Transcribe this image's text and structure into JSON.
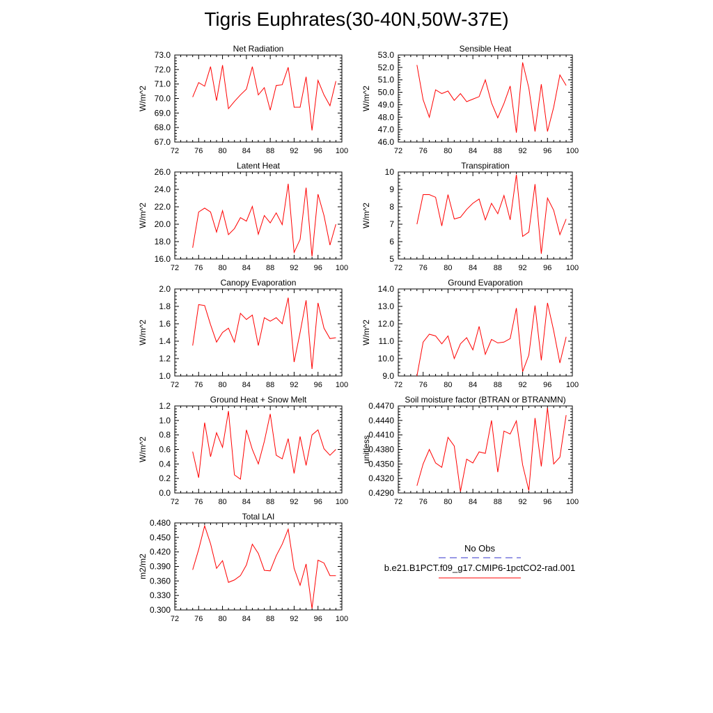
{
  "title": "Tigris Euphrates(30-40N,50W-37E)",
  "legend": {
    "obs_label": "No Obs",
    "obs_color": "#3333cc",
    "model_label": "b.e21.B1PCT.f09_g17.CMIP6-1pctCO2-rad.001",
    "model_color": "#ff0000"
  },
  "chart_data": [
    {
      "type": "line",
      "title": "Net Radiation",
      "ylabel": "W/m^2",
      "xlim": [
        72,
        100
      ],
      "ylim": [
        67.0,
        73.0
      ],
      "x_ticks": [
        "72",
        "76",
        "80",
        "84",
        "88",
        "92",
        "96",
        "100"
      ],
      "y_ticks": [
        "67.0",
        "68.0",
        "69.0",
        "70.0",
        "71.0",
        "72.0",
        "73.0"
      ],
      "x": [
        75,
        76,
        77,
        78,
        79,
        80,
        81,
        82,
        83,
        84,
        85,
        86,
        87,
        88,
        89,
        90,
        91,
        92,
        93,
        94,
        95,
        96,
        97,
        98,
        99
      ],
      "series": [
        {
          "values": [
            70.1,
            71.1,
            70.85,
            72.2,
            69.85,
            72.3,
            69.3,
            69.8,
            70.25,
            70.65,
            72.2,
            70.25,
            70.75,
            69.2,
            70.9,
            70.95,
            72.15,
            69.4,
            69.4,
            71.5,
            67.8,
            71.25,
            70.25,
            69.5,
            71.2
          ]
        }
      ]
    },
    {
      "type": "line",
      "title": "Sensible Heat",
      "ylabel": "W/m^2",
      "xlim": [
        72,
        100
      ],
      "ylim": [
        46.0,
        53.0
      ],
      "x_ticks": [
        "72",
        "76",
        "80",
        "84",
        "88",
        "92",
        "96",
        "100"
      ],
      "y_ticks": [
        "46.0",
        "47.0",
        "48.0",
        "49.0",
        "50.0",
        "51.0",
        "52.0",
        "53.0"
      ],
      "x": [
        75,
        76,
        77,
        78,
        79,
        80,
        81,
        82,
        83,
        84,
        85,
        86,
        87,
        88,
        89,
        90,
        91,
        92,
        93,
        94,
        95,
        96,
        97,
        98,
        99
      ],
      "series": [
        {
          "values": [
            52.2,
            49.4,
            48.0,
            50.2,
            49.9,
            50.1,
            49.35,
            49.9,
            49.25,
            49.45,
            49.65,
            51.0,
            49.15,
            47.95,
            49.1,
            50.5,
            46.75,
            52.4,
            50.35,
            46.85,
            50.65,
            46.85,
            48.8,
            51.4,
            50.55
          ]
        }
      ]
    },
    {
      "type": "line",
      "title": "Latent Heat",
      "ylabel": "W/m^2",
      "xlim": [
        72,
        100
      ],
      "ylim": [
        16.0,
        26.0
      ],
      "x_ticks": [
        "72",
        "76",
        "80",
        "84",
        "88",
        "92",
        "96",
        "100"
      ],
      "y_ticks": [
        "16.0",
        "18.0",
        "20.0",
        "22.0",
        "24.0",
        "26.0"
      ],
      "x": [
        75,
        76,
        77,
        78,
        79,
        80,
        81,
        82,
        83,
        84,
        85,
        86,
        87,
        88,
        89,
        90,
        91,
        92,
        93,
        94,
        95,
        96,
        97,
        98,
        99
      ],
      "series": [
        {
          "values": [
            17.3,
            21.4,
            21.85,
            21.4,
            19.1,
            21.55,
            18.8,
            19.5,
            20.75,
            20.35,
            22.05,
            18.85,
            21.0,
            20.15,
            21.3,
            19.95,
            24.65,
            16.75,
            18.25,
            24.2,
            16.3,
            23.45,
            21.0,
            17.6,
            20.0
          ]
        }
      ]
    },
    {
      "type": "line",
      "title": "Transpiration",
      "ylabel": "W/m^2",
      "xlim": [
        72,
        100
      ],
      "ylim": [
        5,
        10
      ],
      "x_ticks": [
        "72",
        "76",
        "80",
        "84",
        "88",
        "92",
        "96",
        "100"
      ],
      "y_ticks": [
        "5",
        "6",
        "7",
        "8",
        "9",
        "10"
      ],
      "x": [
        75,
        76,
        77,
        78,
        79,
        80,
        81,
        82,
        83,
        84,
        85,
        86,
        87,
        88,
        89,
        90,
        91,
        92,
        93,
        94,
        95,
        96,
        97,
        98,
        99
      ],
      "series": [
        {
          "values": [
            7.0,
            8.7,
            8.7,
            8.55,
            6.9,
            8.7,
            7.3,
            7.4,
            7.85,
            8.2,
            8.45,
            7.25,
            8.2,
            7.6,
            8.65,
            7.25,
            9.85,
            6.3,
            6.55,
            9.3,
            5.3,
            8.5,
            7.8,
            6.4,
            7.3
          ]
        }
      ]
    },
    {
      "type": "line",
      "title": "Canopy Evaporation",
      "ylabel": "W/m^2",
      "xlim": [
        72,
        100
      ],
      "ylim": [
        1.0,
        2.0
      ],
      "x_ticks": [
        "72",
        "76",
        "80",
        "84",
        "88",
        "92",
        "96",
        "100"
      ],
      "y_ticks": [
        "1.0",
        "1.2",
        "1.4",
        "1.6",
        "1.8",
        "2.0"
      ],
      "x": [
        75,
        76,
        77,
        78,
        79,
        80,
        81,
        82,
        83,
        84,
        85,
        86,
        87,
        88,
        89,
        90,
        91,
        92,
        93,
        94,
        95,
        96,
        97,
        98,
        99
      ],
      "series": [
        {
          "values": [
            1.35,
            1.82,
            1.81,
            1.59,
            1.39,
            1.5,
            1.55,
            1.39,
            1.72,
            1.65,
            1.7,
            1.35,
            1.67,
            1.63,
            1.67,
            1.6,
            1.9,
            1.16,
            1.5,
            1.87,
            1.08,
            1.84,
            1.55,
            1.43,
            1.44
          ]
        }
      ]
    },
    {
      "type": "line",
      "title": "Ground Evaporation",
      "ylabel": "W/m^2",
      "xlim": [
        72,
        100
      ],
      "ylim": [
        9.0,
        14.0
      ],
      "x_ticks": [
        "72",
        "76",
        "80",
        "84",
        "88",
        "92",
        "96",
        "100"
      ],
      "y_ticks": [
        "9.0",
        "10.0",
        "11.0",
        "12.0",
        "13.0",
        "14.0"
      ],
      "x": [
        75,
        76,
        77,
        78,
        79,
        80,
        81,
        82,
        83,
        84,
        85,
        86,
        87,
        88,
        89,
        90,
        91,
        92,
        93,
        94,
        95,
        96,
        97,
        98,
        99
      ],
      "series": [
        {
          "values": [
            9.0,
            10.95,
            11.4,
            11.3,
            10.85,
            11.3,
            10.0,
            10.85,
            11.2,
            10.5,
            11.85,
            10.25,
            11.1,
            10.9,
            10.95,
            11.15,
            12.9,
            9.25,
            10.2,
            13.05,
            9.9,
            13.2,
            11.6,
            9.75,
            11.25
          ]
        }
      ]
    },
    {
      "type": "line",
      "title": "Ground Heat + Snow Melt",
      "ylabel": "W/m^2",
      "xlim": [
        72,
        100
      ],
      "ylim": [
        0.0,
        1.2
      ],
      "x_ticks": [
        "72",
        "76",
        "80",
        "84",
        "88",
        "92",
        "96",
        "100"
      ],
      "y_ticks": [
        "0.0",
        "0.2",
        "0.4",
        "0.6",
        "0.8",
        "1.0",
        "1.2"
      ],
      "x": [
        75,
        76,
        77,
        78,
        79,
        80,
        81,
        82,
        83,
        84,
        85,
        86,
        87,
        88,
        89,
        90,
        91,
        92,
        93,
        94,
        95,
        96,
        97,
        98,
        99
      ],
      "series": [
        {
          "values": [
            0.57,
            0.21,
            0.97,
            0.5,
            0.83,
            0.63,
            1.13,
            0.25,
            0.19,
            0.87,
            0.6,
            0.4,
            0.71,
            1.09,
            0.52,
            0.47,
            0.75,
            0.27,
            0.78,
            0.38,
            0.8,
            0.87,
            0.61,
            0.52,
            0.6
          ]
        }
      ]
    },
    {
      "type": "line",
      "title": "Soil moisture factor (BTRAN or BTRANMN)",
      "ylabel": "unitless",
      "xlim": [
        72,
        100
      ],
      "ylim": [
        0.429,
        0.447
      ],
      "x_ticks": [
        "72",
        "76",
        "80",
        "84",
        "88",
        "92",
        "96",
        "100"
      ],
      "y_ticks": [
        "0.4290",
        "0.4320",
        "0.4350",
        "0.4380",
        "0.4410",
        "0.4440",
        "0.4470"
      ],
      "x": [
        75,
        76,
        77,
        78,
        79,
        80,
        81,
        82,
        83,
        84,
        85,
        86,
        87,
        88,
        89,
        90,
        91,
        92,
        93,
        94,
        95,
        96,
        97,
        98,
        99
      ],
      "series": [
        {
          "values": [
            0.4305,
            0.435,
            0.438,
            0.4352,
            0.4343,
            0.4405,
            0.4387,
            0.4293,
            0.436,
            0.4352,
            0.4375,
            0.4372,
            0.444,
            0.4333,
            0.4418,
            0.4412,
            0.4439,
            0.4348,
            0.4295,
            0.4445,
            0.4345,
            0.4466,
            0.435,
            0.4364,
            0.4451
          ]
        }
      ]
    },
    {
      "type": "line",
      "title": "Total LAI",
      "ylabel": "m2/m2",
      "xlim": [
        72,
        100
      ],
      "ylim": [
        0.3,
        0.48
      ],
      "x_ticks": [
        "72",
        "76",
        "80",
        "84",
        "88",
        "92",
        "96",
        "100"
      ],
      "y_ticks": [
        "0.300",
        "0.330",
        "0.360",
        "0.390",
        "0.420",
        "0.450",
        "0.480"
      ],
      "x": [
        75,
        76,
        77,
        78,
        79,
        80,
        81,
        82,
        83,
        84,
        85,
        86,
        87,
        88,
        89,
        90,
        91,
        92,
        93,
        94,
        95,
        96,
        97,
        98,
        99
      ],
      "series": [
        {
          "values": [
            0.383,
            0.425,
            0.474,
            0.437,
            0.386,
            0.402,
            0.357,
            0.362,
            0.371,
            0.393,
            0.436,
            0.417,
            0.382,
            0.381,
            0.412,
            0.436,
            0.467,
            0.386,
            0.351,
            0.395,
            0.303,
            0.403,
            0.397,
            0.371,
            0.371
          ]
        }
      ]
    }
  ]
}
